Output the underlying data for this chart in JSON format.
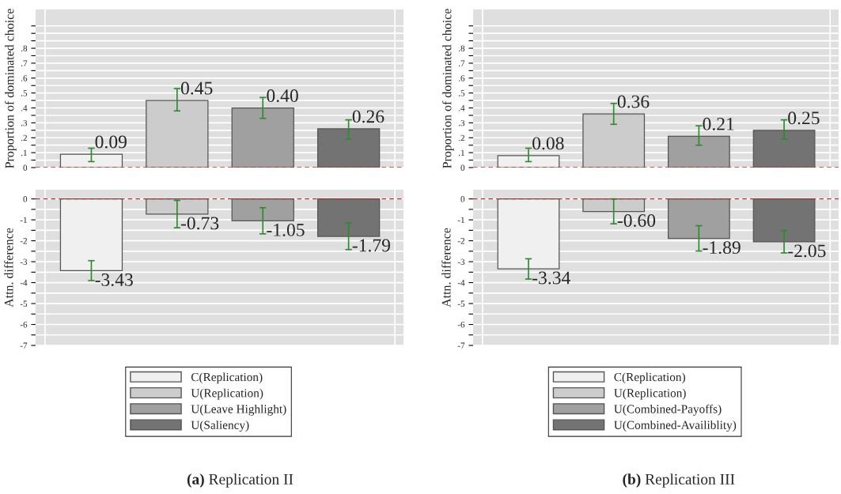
{
  "chart_data": [
    {
      "type": "bar",
      "ylabel": "Proportion of dominated choice",
      "categories": [
        null,
        null,
        null,
        null
      ],
      "ylim": [
        0,
        1.06
      ],
      "yticks": [
        0,
        {
          "value": 0.05,
          "label": null
        },
        {
          "value": 0.1,
          "label": ".1"
        },
        {
          "value": 0.15,
          "label": null
        },
        {
          "value": 0.2,
          "label": ".2"
        },
        {
          "value": 0.25,
          "label": null
        },
        {
          "value": 0.3,
          "label": ".3"
        },
        {
          "value": 0.35,
          "label": null
        },
        {
          "value": 0.4,
          "label": ".4"
        },
        {
          "value": 0.45,
          "label": null
        },
        {
          "value": 0.5,
          "label": ".5"
        },
        {
          "value": 0.55,
          "label": null
        },
        {
          "value": 0.6,
          "label": ".6"
        },
        {
          "value": 0.65,
          "label": null
        },
        {
          "value": 0.7,
          "label": ".7"
        },
        {
          "value": 0.75,
          "label": null
        },
        {
          "value": 0.8,
          "label": ".8"
        },
        {
          "value": 0.85,
          "label": null
        },
        {
          "value": 0.9,
          "label": null
        },
        {
          "value": 0.95,
          "label": null
        }
      ],
      "series": [
        {
          "color": "#f0f0f0",
          "values": [
            0.09,
            null,
            null,
            null
          ],
          "errors": [
            [
              0.04,
              0.13
            ],
            null,
            null,
            null
          ],
          "value_labels": [
            "0.09",
            null,
            null,
            null
          ]
        },
        {
          "color": "#cccccc",
          "values": [
            null,
            0.45,
            null,
            null
          ],
          "errors": [
            null,
            [
              0.38,
              0.53
            ],
            null,
            null
          ],
          "value_labels": [
            null,
            "0.45",
            null,
            null
          ]
        },
        {
          "color": "#a0a0a0",
          "values": [
            null,
            null,
            0.4,
            null
          ],
          "errors": [
            null,
            null,
            [
              0.33,
              0.47
            ],
            null
          ],
          "value_labels": [
            null,
            null,
            "0.40",
            null
          ]
        },
        {
          "color": "#737373",
          "values": [
            null,
            null,
            null,
            0.26
          ],
          "errors": [
            null,
            null,
            null,
            [
              0.19,
              0.32
            ]
          ],
          "value_labels": [
            null,
            null,
            null,
            "0.26"
          ]
        }
      ],
      "ref_lines": [
        {
          "axis": "y",
          "value": 0,
          "color": "#b03030",
          "line_style": "dashed"
        }
      ],
      "grid": true,
      "legend": false,
      "tick_labels": "y"
    },
    {
      "type": "bar",
      "ylabel": "Attn. difference",
      "categories": [
        null,
        null,
        null,
        null
      ],
      "ylim": [
        -7,
        0.44
      ],
      "yticks": [
        -7,
        {
          "value": -6.5,
          "label": null
        },
        -6,
        {
          "value": -5.5,
          "label": null
        },
        -5,
        {
          "value": -4.5,
          "label": null
        },
        -4,
        {
          "value": -3.5,
          "label": null
        },
        -3,
        {
          "value": -2.5,
          "label": null
        },
        -2,
        {
          "value": -1.5,
          "label": null
        },
        -1,
        {
          "value": -0.5,
          "label": null
        },
        0
      ],
      "series": [
        {
          "name": "C(Replication)",
          "color": "#f0f0f0",
          "values": [
            -3.43,
            null,
            null,
            null
          ],
          "errors": [
            [
              -3.9,
              -2.95
            ],
            null,
            null,
            null
          ],
          "value_labels": [
            "-3.43",
            null,
            null,
            null
          ]
        },
        {
          "name": "U(Replication)",
          "color": "#cccccc",
          "values": [
            null,
            -0.73,
            null,
            null
          ],
          "errors": [
            null,
            [
              -1.38,
              -0.07
            ],
            null,
            null
          ],
          "value_labels": [
            null,
            "-0.73",
            null,
            null
          ]
        },
        {
          "name": "U(Leave Highlight)",
          "color": "#a0a0a0",
          "values": [
            null,
            null,
            -1.05,
            null
          ],
          "errors": [
            null,
            null,
            [
              -1.67,
              -0.42
            ],
            null
          ],
          "value_labels": [
            null,
            null,
            "-1.05",
            null
          ]
        },
        {
          "name": "U(Saliency)",
          "color": "#737373",
          "values": [
            null,
            null,
            null,
            -1.79
          ],
          "errors": [
            null,
            null,
            null,
            [
              -2.42,
              -1.15
            ]
          ],
          "value_labels": [
            null,
            null,
            null,
            "-1.79"
          ]
        }
      ],
      "ref_lines": [
        {
          "axis": "y",
          "value": 0,
          "color": "#b03030",
          "line_style": "dashed"
        }
      ],
      "grid": true,
      "legend": "bottom",
      "tick_labels": "y",
      "annotations": [
        "(a) Replication II"
      ]
    },
    {
      "type": "bar",
      "ylabel": "Proportion of dominated choice",
      "categories": [
        null,
        null,
        null,
        null
      ],
      "ylim": [
        0,
        1.06
      ],
      "yticks": [
        0,
        {
          "value": 0.05,
          "label": null
        },
        {
          "value": 0.1,
          "label": ".1"
        },
        {
          "value": 0.15,
          "label": null
        },
        {
          "value": 0.2,
          "label": ".2"
        },
        {
          "value": 0.25,
          "label": null
        },
        {
          "value": 0.3,
          "label": ".3"
        },
        {
          "value": 0.35,
          "label": null
        },
        {
          "value": 0.4,
          "label": ".4"
        },
        {
          "value": 0.45,
          "label": null
        },
        {
          "value": 0.5,
          "label": ".5"
        },
        {
          "value": 0.55,
          "label": null
        },
        {
          "value": 0.6,
          "label": ".6"
        },
        {
          "value": 0.65,
          "label": null
        },
        {
          "value": 0.7,
          "label": ".7"
        },
        {
          "value": 0.75,
          "label": null
        },
        {
          "value": 0.8,
          "label": ".8"
        },
        {
          "value": 0.85,
          "label": null
        },
        {
          "value": 0.9,
          "label": null
        },
        {
          "value": 0.95,
          "label": null
        }
      ],
      "series": [
        {
          "color": "#f0f0f0",
          "values": [
            0.08,
            null,
            null,
            null
          ],
          "errors": [
            [
              0.04,
              0.13
            ],
            null,
            null,
            null
          ],
          "value_labels": [
            "0.08",
            null,
            null,
            null
          ]
        },
        {
          "color": "#cccccc",
          "values": [
            null,
            0.36,
            null,
            null
          ],
          "errors": [
            null,
            [
              0.29,
              0.43
            ],
            null,
            null
          ],
          "value_labels": [
            null,
            "0.36",
            null,
            null
          ]
        },
        {
          "color": "#a0a0a0",
          "values": [
            null,
            null,
            0.21,
            null
          ],
          "errors": [
            null,
            null,
            [
              0.15,
              0.28
            ],
            null
          ],
          "value_labels": [
            null,
            null,
            "0.21",
            null
          ]
        },
        {
          "color": "#737373",
          "values": [
            null,
            null,
            null,
            0.25
          ],
          "errors": [
            null,
            null,
            null,
            [
              0.19,
              0.32
            ]
          ],
          "value_labels": [
            null,
            null,
            null,
            "0.25"
          ]
        }
      ],
      "ref_lines": [
        {
          "axis": "y",
          "value": 0,
          "color": "#b03030",
          "line_style": "dashed"
        }
      ],
      "grid": true,
      "legend": false,
      "tick_labels": "y"
    },
    {
      "type": "bar",
      "ylabel": "Attn. difference",
      "categories": [
        null,
        null,
        null,
        null
      ],
      "ylim": [
        -7,
        0.44
      ],
      "yticks": [
        -7,
        {
          "value": -6.5,
          "label": null
        },
        -6,
        {
          "value": -5.5,
          "label": null
        },
        -5,
        {
          "value": -4.5,
          "label": null
        },
        -4,
        {
          "value": -3.5,
          "label": null
        },
        -3,
        {
          "value": -2.5,
          "label": null
        },
        -2,
        {
          "value": -1.5,
          "label": null
        },
        -1,
        {
          "value": -0.5,
          "label": null
        },
        0
      ],
      "series": [
        {
          "name": "C(Replication)",
          "color": "#f0f0f0",
          "values": [
            -3.34,
            null,
            null,
            null
          ],
          "errors": [
            [
              -3.83,
              -2.86
            ],
            null,
            null,
            null
          ],
          "value_labels": [
            "-3.34",
            null,
            null,
            null
          ]
        },
        {
          "name": "U(Replication)",
          "color": "#cccccc",
          "values": [
            null,
            -0.6,
            null,
            null
          ],
          "errors": [
            null,
            [
              -1.19,
              0.0
            ],
            null,
            null
          ],
          "value_labels": [
            null,
            "-0.60",
            null,
            null
          ]
        },
        {
          "name": "U(Combined-Payoffs)",
          "color": "#a0a0a0",
          "values": [
            null,
            null,
            -1.89,
            null
          ],
          "errors": [
            null,
            null,
            [
              -2.49,
              -1.28
            ],
            null
          ],
          "value_labels": [
            null,
            null,
            "-1.89",
            null
          ]
        },
        {
          "name": "U(Combined-Availiblity)",
          "color": "#737373",
          "values": [
            null,
            null,
            null,
            -2.05
          ],
          "errors": [
            null,
            null,
            null,
            [
              -2.58,
              -1.51
            ]
          ],
          "value_labels": [
            null,
            null,
            null,
            "-2.05"
          ]
        }
      ],
      "ref_lines": [
        {
          "axis": "y",
          "value": 0,
          "color": "#b03030",
          "line_style": "dashed"
        }
      ],
      "grid": true,
      "legend": "bottom",
      "tick_labels": "y",
      "annotations": [
        "(b) Replication III"
      ]
    }
  ]
}
